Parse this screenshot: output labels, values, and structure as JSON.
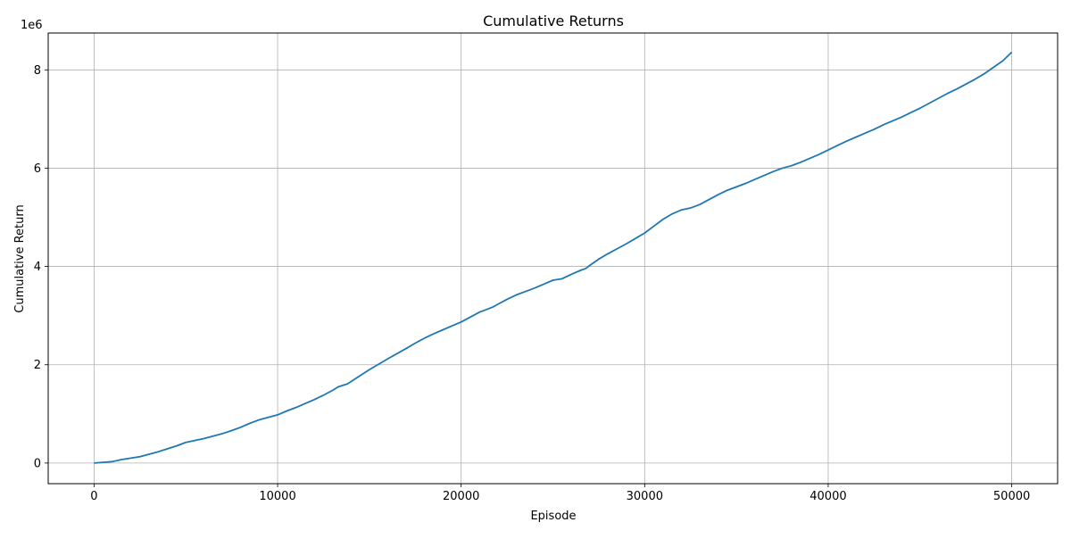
{
  "chart_data": {
    "type": "line",
    "title": "Cumulative Returns",
    "xlabel": "Episode",
    "ylabel": "Cumulative Return",
    "y_offset_label": "1e6",
    "xlim": [
      -2500,
      52500
    ],
    "ylim": [
      -0.42,
      8.75
    ],
    "y_scale_multiplier": 1000000,
    "x_ticks": [
      0,
      10000,
      20000,
      30000,
      40000,
      50000
    ],
    "x_tick_labels": [
      "0",
      "10000",
      "20000",
      "30000",
      "40000",
      "50000"
    ],
    "y_ticks": [
      0,
      2,
      4,
      6,
      8
    ],
    "y_tick_labels": [
      "0",
      "2",
      "4",
      "6",
      "8"
    ],
    "grid": true,
    "line_color": "#1f77b4",
    "series": [
      {
        "name": "",
        "x": [
          0,
          1000,
          1500,
          2000,
          2500,
          3000,
          3500,
          4000,
          4500,
          5000,
          6000,
          6500,
          7000,
          7500,
          8000,
          8500,
          9000,
          10000,
          10500,
          11000,
          11500,
          12000,
          12500,
          13000,
          13300,
          13800,
          14500,
          15000,
          16000,
          17000,
          17500,
          18000,
          18500,
          19000,
          19500,
          20000,
          20500,
          21000,
          21700,
          22000,
          22500,
          23000,
          23500,
          24000,
          24500,
          25000,
          25500,
          26000,
          26500,
          26800,
          27000,
          27500,
          28000,
          28500,
          29000,
          29500,
          30000,
          30500,
          31000,
          31500,
          32000,
          32500,
          33000,
          33500,
          34000,
          34500,
          35000,
          35500,
          36000,
          36500,
          37000,
          37500,
          38000,
          38500,
          39000,
          39500,
          40000,
          40500,
          41000,
          41500,
          42000,
          42500,
          43000,
          43500,
          44000,
          44500,
          45000,
          45500,
          46000,
          46500,
          47000,
          47500,
          48000,
          48500,
          49000,
          49500,
          50000
        ],
        "y": [
          0.0,
          0.03,
          0.07,
          0.1,
          0.13,
          0.18,
          0.23,
          0.29,
          0.35,
          0.42,
          0.5,
          0.55,
          0.6,
          0.66,
          0.73,
          0.81,
          0.88,
          0.98,
          1.06,
          1.13,
          1.21,
          1.29,
          1.38,
          1.48,
          1.55,
          1.61,
          1.78,
          1.9,
          2.12,
          2.33,
          2.44,
          2.54,
          2.63,
          2.71,
          2.79,
          2.87,
          2.97,
          3.07,
          3.17,
          3.23,
          3.33,
          3.42,
          3.49,
          3.56,
          3.64,
          3.72,
          3.75,
          3.84,
          3.92,
          3.96,
          4.02,
          4.15,
          4.26,
          4.36,
          4.46,
          4.57,
          4.68,
          4.82,
          4.96,
          5.07,
          5.15,
          5.19,
          5.26,
          5.36,
          5.46,
          5.55,
          5.62,
          5.69,
          5.77,
          5.85,
          5.93,
          6.0,
          6.05,
          6.12,
          6.2,
          6.28,
          6.37,
          6.46,
          6.55,
          6.63,
          6.71,
          6.79,
          6.88,
          6.96,
          7.04,
          7.13,
          7.22,
          7.32,
          7.42,
          7.52,
          7.61,
          7.71,
          7.81,
          7.92,
          8.05,
          8.18,
          8.36
        ]
      }
    ]
  }
}
